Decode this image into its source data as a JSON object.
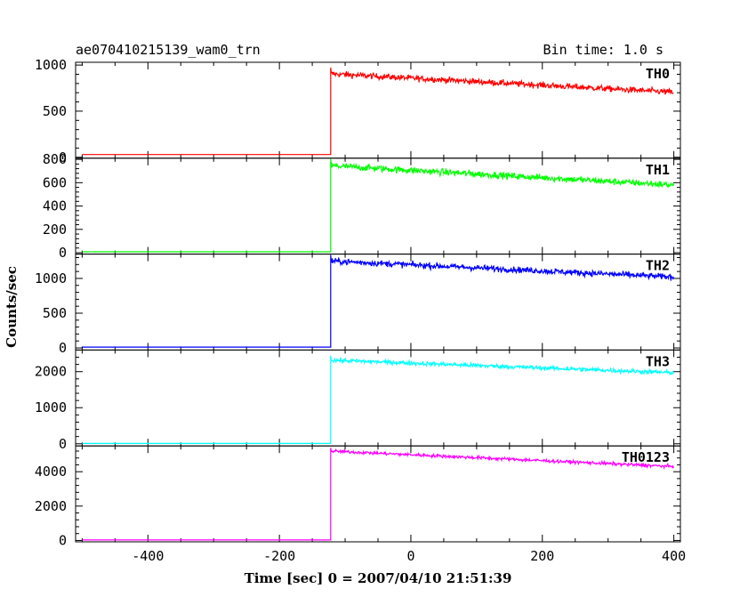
{
  "chart_data": {
    "type": "line",
    "title_left": "ae070410215139_wam0_trn",
    "title_right": "Bin time: 1.0 s",
    "xlabel": "Time [sec] 0 = 2007/04/10 21:51:39",
    "ylabel": "Counts/sec",
    "xlim": [
      -510,
      410
    ],
    "x_ticks": [
      -400,
      -200,
      0,
      200,
      400
    ],
    "step_time": -122,
    "series": [
      {
        "name": "TH0",
        "color": "#ff0000",
        "baseline": 30,
        "start_level": 905,
        "end_level": 705,
        "noise": 30,
        "ylim": [
          -10,
          1030
        ],
        "y_ticks": [
          0,
          500,
          1000
        ]
      },
      {
        "name": "TH1",
        "color": "#00ff00",
        "baseline": 8,
        "start_level": 745,
        "end_level": 580,
        "noise": 26,
        "ylim": [
          -12,
          810
        ],
        "y_ticks": [
          0,
          200,
          400,
          600,
          800
        ]
      },
      {
        "name": "TH2",
        "color": "#0000ff",
        "baseline": 12,
        "start_level": 1250,
        "end_level": 1020,
        "noise": 40,
        "ylim": [
          -30,
          1350
        ],
        "y_ticks": [
          0,
          500,
          1000
        ]
      },
      {
        "name": "TH3",
        "color": "#00ffff",
        "baseline": 10,
        "start_level": 2320,
        "end_level": 1970,
        "noise": 55,
        "ylim": [
          -60,
          2600
        ],
        "y_ticks": [
          0,
          1000,
          2000
        ]
      },
      {
        "name": "TH0123",
        "color": "#ff00ff",
        "baseline": 30,
        "start_level": 5200,
        "end_level": 4300,
        "noise": 85,
        "ylim": [
          -80,
          5500
        ],
        "y_ticks": [
          0,
          2000,
          4000
        ]
      }
    ]
  }
}
